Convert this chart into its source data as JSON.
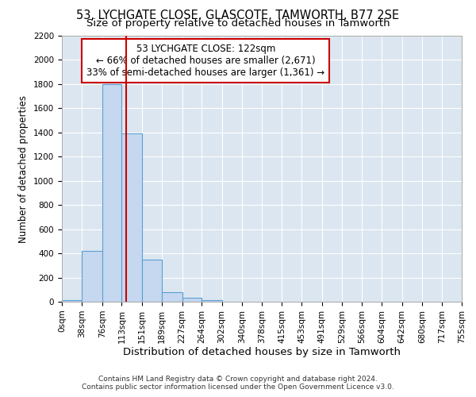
{
  "title": "53, LYCHGATE CLOSE, GLASCOTE, TAMWORTH, B77 2SE",
  "subtitle": "Size of property relative to detached houses in Tamworth",
  "xlabel": "Distribution of detached houses by size in Tamworth",
  "ylabel": "Number of detached properties",
  "footer_line1": "Contains HM Land Registry data © Crown copyright and database right 2024.",
  "footer_line2": "Contains public sector information licensed under the Open Government Licence v3.0.",
  "bin_edges": [
    0,
    38,
    76,
    113,
    151,
    189,
    227,
    264,
    302,
    340,
    378,
    415,
    453,
    491,
    529,
    566,
    604,
    642,
    680,
    717,
    755
  ],
  "bar_heights": [
    15,
    420,
    1800,
    1390,
    350,
    80,
    30,
    15,
    0,
    0,
    0,
    0,
    0,
    0,
    0,
    0,
    0,
    0,
    0,
    0
  ],
  "bar_color": "#c5d8ef",
  "bar_edge_color": "#5a9fd4",
  "vline_x": 122,
  "vline_color": "#cc0000",
  "annotation_line1": "53 LYCHGATE CLOSE: 122sqm",
  "annotation_line2": "← 66% of detached houses are smaller (2,671)",
  "annotation_line3": "33% of semi-detached houses are larger (1,361) →",
  "annotation_box_color": "#cc0000",
  "ylim": [
    0,
    2200
  ],
  "yticks": [
    0,
    200,
    400,
    600,
    800,
    1000,
    1200,
    1400,
    1600,
    1800,
    2000,
    2200
  ],
  "background_color": "#dce6f0",
  "title_fontsize": 10.5,
  "subtitle_fontsize": 9.5,
  "tick_label_fontsize": 7.5,
  "ylabel_fontsize": 8.5,
  "xlabel_fontsize": 9.5,
  "annotation_fontsize": 8.5,
  "footer_fontsize": 6.5
}
